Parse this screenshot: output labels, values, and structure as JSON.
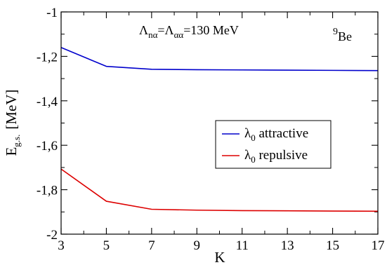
{
  "chart_data": {
    "type": "line",
    "xlabel": "K",
    "ylabel": {
      "main": "E",
      "sub": "g.s.",
      "unit": "[MeV]"
    },
    "xlim": [
      3,
      17
    ],
    "ylim": [
      -2,
      -1
    ],
    "xticks": [
      3,
      5,
      7,
      9,
      11,
      13,
      15,
      17
    ],
    "xtick_labels": [
      "3",
      "5",
      "7",
      "9",
      "11",
      "13",
      "15",
      "17"
    ],
    "yticks": [
      -2,
      -1.8,
      -1.6,
      -1.4,
      -1.2,
      -1
    ],
    "ytick_labels": [
      "-2",
      "-1,8",
      "-1,6",
      "-1,4",
      "-1,2",
      "-1"
    ],
    "grid": false,
    "legend_position": "middle-right",
    "annotations": {
      "lambda_text": {
        "L1": "Λ",
        "s1": "nα",
        "eq1": "=",
        "L2": "Λ",
        "s2": "αα",
        "eq2": "=130 MeV"
      },
      "nucleus": {
        "mass": "9",
        "symbol": "Be"
      }
    },
    "series": [
      {
        "name": {
          "symbol": "λ",
          "sub": "0",
          "text": " attractive"
        },
        "color": "#0000cc",
        "x": [
          3,
          5,
          7,
          9,
          11,
          13,
          15,
          17
        ],
        "y": [
          -1.16,
          -1.245,
          -1.258,
          -1.26,
          -1.261,
          -1.262,
          -1.263,
          -1.264
        ]
      },
      {
        "name": {
          "symbol": "λ",
          "sub": "0",
          "text": " repulsive"
        },
        "color": "#dd0000",
        "x": [
          3,
          5,
          7,
          9,
          11,
          13,
          15,
          17
        ],
        "y": [
          -1.707,
          -1.852,
          -1.888,
          -1.892,
          -1.894,
          -1.895,
          -1.896,
          -1.897
        ]
      }
    ]
  }
}
